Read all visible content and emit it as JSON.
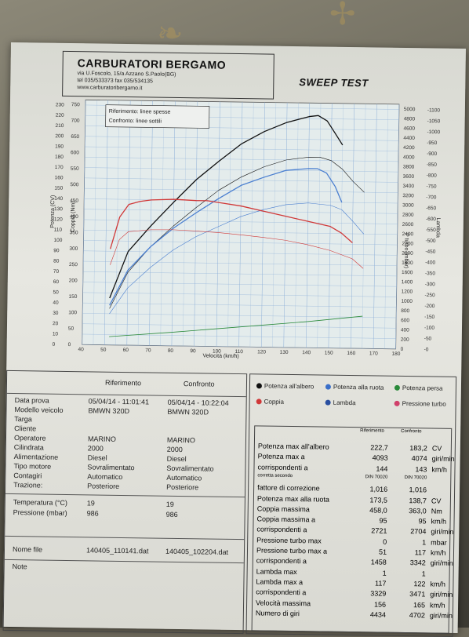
{
  "header": {
    "company": "CARBURATORI BERGAMO",
    "address_line1": "via U.Foscolo, 15/a Azzano S.Paolo(BG)",
    "address_line2": "tel 035/533373  fax 035/534135",
    "address_line3": "www.carburatoribergamo.it",
    "test_title": "SWEEP TEST"
  },
  "chart_data": {
    "type": "line",
    "xlabel": "Velocità (km/h)",
    "x_ticks": [
      40,
      50,
      60,
      70,
      80,
      90,
      100,
      110,
      120,
      130,
      140,
      150,
      160,
      170,
      180
    ],
    "xlim": [
      40,
      180
    ],
    "left_axis_cv": {
      "label": "Potenza (CV)",
      "ticks": [
        0,
        10,
        20,
        30,
        40,
        50,
        60,
        70,
        80,
        90,
        100,
        110,
        120,
        130,
        140,
        150,
        160,
        170,
        180,
        190,
        200,
        210,
        220,
        230
      ]
    },
    "left_axis_nm": {
      "label": "Coppia (Nm)",
      "ticks": [
        0,
        50,
        100,
        150,
        200,
        250,
        300,
        350,
        400,
        450,
        500,
        550,
        600,
        650,
        700,
        750
      ]
    },
    "right_axis_rpm": {
      "label": "giri/min",
      "ticks": [
        0,
        200,
        400,
        600,
        800,
        1000,
        1200,
        1400,
        1600,
        1800,
        2000,
        2200,
        2400,
        2600,
        2800,
        3000,
        3200,
        3400,
        3600,
        3800,
        4000,
        4200,
        4400,
        4600,
        4800,
        5000
      ]
    },
    "right_axis_mbar": {
      "label": "P turbo (mbar)",
      "ticks": []
    },
    "right_axis_lambda": {
      "label": "Lambda",
      "ticks": [
        0,
        50,
        100,
        150,
        200,
        250,
        300,
        350,
        400,
        450,
        500,
        550,
        600,
        650,
        700,
        750,
        800,
        850,
        900,
        950,
        1000,
        1050,
        1100
      ]
    },
    "legend_box": [
      "Riferimento: linee spesse",
      "Confronto: linee sottili"
    ],
    "series": [
      {
        "name": "Potenza all'albero",
        "color": "#111111",
        "width": 1.3,
        "x": [
          52,
          60,
          70,
          80,
          90,
          100,
          110,
          120,
          130,
          140,
          144,
          148,
          152,
          155
        ],
        "y": [
          45,
          90,
          115,
          138,
          160,
          178,
          195,
          207,
          216,
          222,
          223,
          218,
          205,
          195
        ]
      },
      {
        "name": "Potenza all'albero",
        "color": "#111111",
        "width": 0.6,
        "x": [
          52,
          60,
          70,
          80,
          90,
          100,
          110,
          120,
          130,
          140,
          145,
          150,
          155,
          160,
          165
        ],
        "y": [
          35,
          70,
          95,
          115,
          133,
          150,
          163,
          173,
          180,
          183,
          183,
          180,
          172,
          160,
          150
        ]
      },
      {
        "name": "Potenza alla ruota",
        "color": "#4a7fd0",
        "width": 1.3,
        "x": [
          52,
          60,
          70,
          80,
          90,
          100,
          110,
          120,
          130,
          140,
          144,
          148,
          152,
          155
        ],
        "y": [
          38,
          72,
          95,
          113,
          128,
          142,
          155,
          163,
          170,
          172,
          172,
          168,
          155,
          140
        ]
      },
      {
        "name": "Potenza alla ruota",
        "color": "#4a7fd0",
        "width": 0.6,
        "x": [
          52,
          60,
          70,
          80,
          90,
          100,
          110,
          120,
          130,
          140,
          150,
          155,
          160,
          165
        ],
        "y": [
          30,
          55,
          75,
          92,
          105,
          115,
          125,
          132,
          137,
          139,
          137,
          133,
          122,
          110
        ]
      },
      {
        "name": "Potenza persa",
        "color": "#2a8a3a",
        "width": 0.8,
        "x": [
          52,
          80,
          100,
          120,
          140,
          165
        ],
        "y": [
          8,
          13,
          17,
          21,
          25,
          31
        ]
      },
      {
        "name": "Coppia",
        "color": "#d03838",
        "width": 1.3,
        "x": [
          52,
          56,
          60,
          65,
          70,
          80,
          90,
          95,
          100,
          110,
          120,
          130,
          140,
          150,
          155,
          160
        ],
        "y": [
          300,
          400,
          440,
          450,
          455,
          458,
          455,
          455,
          450,
          440,
          425,
          410,
          395,
          380,
          360,
          330
        ]
      },
      {
        "name": "Coppia",
        "color": "#d03838",
        "width": 0.6,
        "x": [
          52,
          56,
          60,
          70,
          80,
          90,
          100,
          110,
          120,
          130,
          140,
          150,
          160,
          165
        ],
        "y": [
          250,
          330,
          355,
          362,
          363,
          360,
          356,
          350,
          343,
          335,
          322,
          305,
          280,
          250
        ]
      }
    ]
  },
  "legend": [
    {
      "label": "Potenza all'albero",
      "color": "#111111"
    },
    {
      "label": "Potenza alla ruota",
      "color": "#3a6fc9"
    },
    {
      "label": "Potenza persa",
      "color": "#2a8a3a"
    },
    {
      "label": "Coppia",
      "color": "#d03838"
    },
    {
      "label": "Lambda",
      "color": "#2a4fa0"
    },
    {
      "label": "Pressione turbo",
      "color": "#d0406a"
    }
  ],
  "info": {
    "col_ref": "Riferimento",
    "col_conf": "Confronto",
    "rows": [
      {
        "label": "Data prova",
        "ref": "05/04/14 - 11:01:41",
        "conf": "05/04/14 - 10:22:04"
      },
      {
        "label": "Modello veicolo",
        "ref": "BMWN 320D",
        "conf": "BMWN 320D"
      },
      {
        "label": "Targa",
        "ref": "",
        "conf": ""
      },
      {
        "label": "Cliente",
        "ref": "",
        "conf": ""
      },
      {
        "label": "Operatore",
        "ref": "MARINO",
        "conf": "MARINO"
      },
      {
        "label": "Cilindrata",
        "ref": "2000",
        "conf": "2000"
      },
      {
        "label": "Alimentazione",
        "ref": "Diesel",
        "conf": "Diesel"
      },
      {
        "label": "Tipo motore",
        "ref": "Sovralimentato",
        "conf": "Sovralimentato"
      },
      {
        "label": "Contagiri",
        "ref": "Automatico",
        "conf": "Automatico"
      },
      {
        "label": "Trazione:",
        "ref": "Posteriore",
        "conf": "Posteriore"
      }
    ],
    "env": [
      {
        "label": "Temperatura (°C)",
        "ref": "19",
        "conf": "19"
      },
      {
        "label": "Pressione (mbar)",
        "ref": "986",
        "conf": "986"
      }
    ],
    "file": {
      "label": "Nome file",
      "ref": "140405_110141.dat",
      "conf": "140405_102204.dat"
    },
    "note_label": "Note"
  },
  "stats": {
    "col_ref": "Riferimento",
    "col_conf": "Confronto",
    "rows": [
      {
        "label": "Potenza max all'albero",
        "ref": "222,7",
        "conf": "183,2",
        "unit": "CV"
      },
      {
        "label": "Potenza max a",
        "ref": "4093",
        "conf": "4074",
        "unit": "giri/min"
      },
      {
        "label": "corrispondenti a",
        "ref": "144",
        "conf": "143",
        "unit": "km/h"
      },
      {
        "label": "corretta secondo",
        "ref": "DIN 70020",
        "conf": "DIN 70020",
        "unit": ""
      },
      {
        "label": "fattore di correzione",
        "ref": "1,016",
        "conf": "1,016",
        "unit": ""
      },
      {
        "label": "Potenza max alla ruota",
        "ref": "173,5",
        "conf": "138,7",
        "unit": "CV"
      },
      {
        "label": "Coppia massima",
        "ref": "458,0",
        "conf": "363,0",
        "unit": "Nm"
      },
      {
        "label": "Coppia massima a",
        "ref": "95",
        "conf": "95",
        "unit": "km/h"
      },
      {
        "label": "corrispondenti a",
        "ref": "2721",
        "conf": "2704",
        "unit": "giri/min"
      },
      {
        "label": "Pressione turbo max",
        "ref": "0",
        "conf": "1",
        "unit": "mbar"
      },
      {
        "label": "Pressione turbo max a",
        "ref": "51",
        "conf": "117",
        "unit": "km/h"
      },
      {
        "label": "corrispondenti a",
        "ref": "1458",
        "conf": "3342",
        "unit": "giri/min"
      },
      {
        "label": "Lambda max",
        "ref": "1",
        "conf": "1",
        "unit": ""
      },
      {
        "label": "Lambda max a",
        "ref": "117",
        "conf": "122",
        "unit": "km/h"
      },
      {
        "label": "corrispondenti a",
        "ref": "3329",
        "conf": "3471",
        "unit": "giri/min"
      },
      {
        "label": "Velocità massima",
        "ref": "156",
        "conf": "165",
        "unit": "km/h"
      },
      {
        "label": "Numero di giri",
        "ref": "4434",
        "conf": "4702",
        "unit": "giri/min"
      }
    ]
  },
  "footer_text": "Note Riferimento"
}
